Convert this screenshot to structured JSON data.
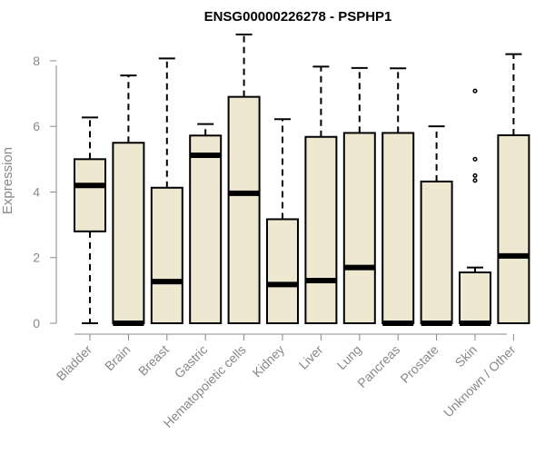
{
  "chart_data": {
    "type": "box",
    "title": "ENSG00000226278 - PSPHP1",
    "ylabel": "Expression",
    "xlabel": "",
    "ylim": [
      0,
      8.8
    ],
    "yticks": [
      0,
      2,
      4,
      6,
      8
    ],
    "box_color": "#EFE8D0",
    "categories": [
      "Bladder",
      "Brain",
      "Breast",
      "Gastric",
      "Hematopoietic cells",
      "Kidney",
      "Liver",
      "Lung",
      "Pancreas",
      "Prostate",
      "Skin",
      "Unknown / Other"
    ],
    "boxes": [
      {
        "category": "Bladder",
        "min": 0,
        "q1": 2.8,
        "median": 4.2,
        "q3": 5.0,
        "max": 6.27,
        "outliers": []
      },
      {
        "category": "Brain",
        "min": 0,
        "q1": 0,
        "median": 0,
        "q3": 5.5,
        "max": 7.55,
        "outliers": []
      },
      {
        "category": "Breast",
        "min": 0,
        "q1": 0,
        "median": 1.27,
        "q3": 4.13,
        "max": 8.07,
        "outliers": []
      },
      {
        "category": "Gastric",
        "min": 0,
        "q1": 0,
        "median": 5.12,
        "q3": 5.72,
        "max": 6.07,
        "outliers": []
      },
      {
        "category": "Hematopoietic cells",
        "min": 0,
        "q1": 0,
        "median": 3.96,
        "q3": 6.9,
        "max": 8.8,
        "outliers": []
      },
      {
        "category": "Kidney",
        "min": 0,
        "q1": 0,
        "median": 1.18,
        "q3": 3.17,
        "max": 6.22,
        "outliers": []
      },
      {
        "category": "Liver",
        "min": 0,
        "q1": 0,
        "median": 1.3,
        "q3": 5.68,
        "max": 7.82,
        "outliers": []
      },
      {
        "category": "Lung",
        "min": 0,
        "q1": 0,
        "median": 1.7,
        "q3": 5.8,
        "max": 7.78,
        "outliers": []
      },
      {
        "category": "Pancreas",
        "min": 0,
        "q1": 0,
        "median": 0,
        "q3": 5.8,
        "max": 7.77,
        "outliers": []
      },
      {
        "category": "Prostate",
        "min": 0,
        "q1": 0,
        "median": 0,
        "q3": 4.32,
        "max": 6.0,
        "outliers": []
      },
      {
        "category": "Skin",
        "min": 0,
        "q1": 0,
        "median": 0,
        "q3": 1.55,
        "max": 1.7,
        "outliers": [
          4.35,
          4.5,
          5.0,
          7.08
        ]
      },
      {
        "category": "Unknown / Other",
        "min": 0,
        "q1": 0,
        "median": 2.05,
        "q3": 5.73,
        "max": 8.2,
        "outliers": []
      }
    ],
    "grid": false,
    "legend": "none"
  }
}
